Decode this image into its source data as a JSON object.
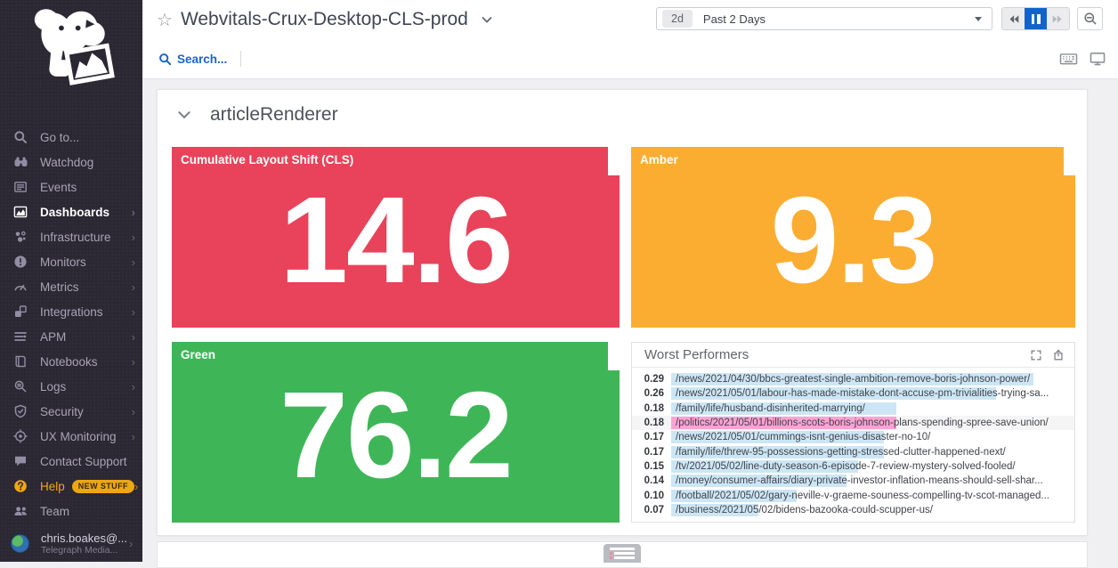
{
  "sidebar": {
    "items": [
      {
        "label": "Go to...",
        "icon": "search"
      },
      {
        "label": "Watchdog",
        "icon": "watchdog"
      },
      {
        "label": "Events",
        "icon": "events"
      },
      {
        "label": "Dashboards",
        "icon": "dashboards",
        "active": true,
        "submenu": true
      },
      {
        "label": "Infrastructure",
        "icon": "infrastructure",
        "submenu": true
      },
      {
        "label": "Monitors",
        "icon": "monitors",
        "submenu": true
      },
      {
        "label": "Metrics",
        "icon": "metrics",
        "submenu": true
      },
      {
        "label": "Integrations",
        "icon": "integrations",
        "submenu": true
      },
      {
        "label": "APM",
        "icon": "apm",
        "submenu": true
      },
      {
        "label": "Notebooks",
        "icon": "notebooks",
        "submenu": true
      },
      {
        "label": "Logs",
        "icon": "logs",
        "submenu": true
      },
      {
        "label": "Security",
        "icon": "security",
        "submenu": true
      },
      {
        "label": "UX Monitoring",
        "icon": "ux-monitoring",
        "submenu": true
      },
      {
        "label": "Contact Support",
        "icon": "chat"
      },
      {
        "label": "Help",
        "icon": "help",
        "accent": true,
        "badge": "NEW STUFF",
        "submenu": true
      },
      {
        "label": "Team",
        "icon": "team"
      }
    ],
    "user": {
      "name": "chris.boakes@...",
      "org": "Telegraph Media..."
    }
  },
  "topbar": {
    "title": "Webvitals-Crux-Desktop-CLS-prod",
    "search_label": "Search...",
    "time_badge": "2d",
    "time_label": "Past 2 Days"
  },
  "main": {
    "section_title": "articleRenderer"
  },
  "colors": {
    "cls_red": "#e8435a",
    "amber": "#fbad31",
    "green": "#3eb658",
    "bar_blue": "#cde6f5",
    "bar_pink": "#fba3d4",
    "pause_blue": "#1264cc",
    "help_orange": "#f2a615"
  },
  "chart_data": [
    {
      "type": "query_value",
      "title": "Cumulative Layout Shift (CLS)",
      "value": 14.6,
      "value_label": "14.6",
      "color": "#e8435a"
    },
    {
      "type": "query_value",
      "title": "Amber",
      "value": 9.3,
      "value_label": "9.3",
      "color": "#fbad31"
    },
    {
      "type": "query_value",
      "title": "Green",
      "value": 76.2,
      "value_label": "76.2",
      "color": "#3eb658"
    },
    {
      "type": "bar",
      "orientation": "horizontal",
      "title": "Worst Performers",
      "legend": false,
      "xlim": [
        0,
        0.317
      ],
      "values": [
        0.29,
        0.26,
        0.18,
        0.18,
        0.17,
        0.17,
        0.15,
        0.14,
        0.1,
        0.07
      ],
      "value_labels": [
        "0.29",
        "0.26",
        "0.18",
        "0.18",
        "0.17",
        "0.17",
        "0.15",
        "0.14",
        "0.10",
        "0.07"
      ],
      "categories": [
        "/news/2021/04/30/bbcs-greatest-single-ambition-remove-boris-johnson-power/",
        "/news/2021/05/01/labour-has-made-mistake-dont-accuse-pm-trivialities-trying-sa...",
        "/family/life/husband-disinherited-marrying/",
        "/politics/2021/05/01/billions-scots-boris-johnson-plans-spending-spree-save-union/",
        "/news/2021/05/01/cummings-isnt-genius-disaster-no-10/",
        "/family/life/threw-95-possessions-getting-stressed-clutter-happened-next/",
        "/tv/2021/05/02/line-duty-season-6-episode-7-review-mystery-solved-fooled/",
        "/money/consumer-affairs/diary-private-investor-inflation-means-should-sell-shar...",
        "/football/2021/05/02/gary-neville-v-graeme-souness-compelling-tv-scot-managed...",
        "/business/2021/05/02/bidens-bazooka-could-scupper-us/"
      ],
      "bar_default_color": "#cde6f5",
      "bar_colors": {
        "3": "#fba3d4"
      },
      "highlighted_row": 3
    }
  ]
}
